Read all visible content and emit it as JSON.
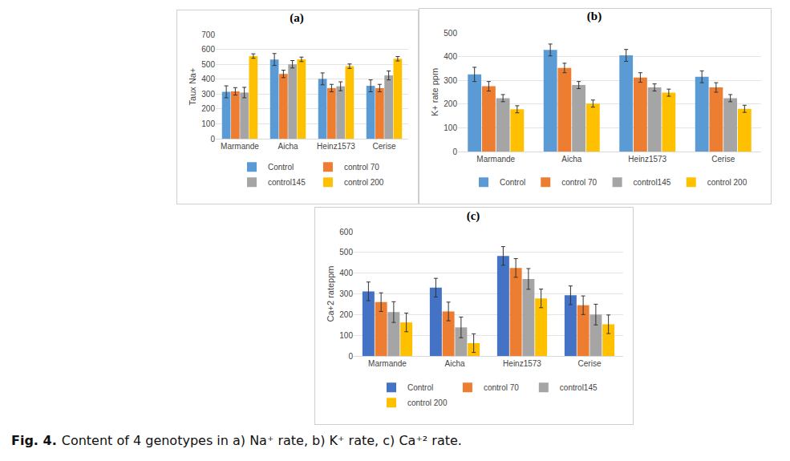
{
  "caption": {
    "label": "Fig. 4.",
    "text": "Content of 4 genotypes in a) Na⁺ rate, b) K⁺ rate, c) Ca⁺² rate."
  },
  "chart_data": [
    {
      "type": "bar",
      "title": "(a)",
      "y_label": "Taux Na+",
      "categories": [
        "Marmande",
        "Aicha",
        "Heinz1573",
        "Cerise"
      ],
      "series": [
        {
          "name": "Control",
          "color": "#5b9bd5",
          "values": [
            315,
            532,
            402,
            355
          ],
          "errors": [
            40,
            40,
            40,
            40
          ]
        },
        {
          "name": "control 70",
          "color": "#ed7d31",
          "values": [
            318,
            435,
            340,
            340
          ],
          "errors": [
            25,
            25,
            25,
            25
          ]
        },
        {
          "name": "control145",
          "color": "#a5a5a5",
          "values": [
            310,
            500,
            352,
            425
          ],
          "errors": [
            35,
            25,
            30,
            30
          ]
        },
        {
          "name": "control 200",
          "color": "#ffc000",
          "values": [
            555,
            533,
            487,
            537
          ],
          "errors": [
            15,
            15,
            15,
            15
          ]
        }
      ],
      "ylim": [
        0,
        700
      ],
      "yticks": [
        0,
        100,
        200,
        300,
        400,
        500,
        600,
        700
      ],
      "grid": true,
      "legend": "bottom"
    },
    {
      "type": "bar",
      "title": "(b)",
      "y_label": "K+ rate ppm",
      "categories": [
        "Marmande",
        "Aicha",
        "Heinz1573",
        "Cerise"
      ],
      "series": [
        {
          "name": "Control",
          "color": "#5b9bd5",
          "values": [
            325,
            428,
            405,
            315
          ],
          "errors": [
            30,
            25,
            25,
            25
          ]
        },
        {
          "name": "control 70",
          "color": "#ed7d31",
          "values": [
            275,
            352,
            312,
            270
          ],
          "errors": [
            20,
            20,
            20,
            20
          ]
        },
        {
          "name": "control145",
          "color": "#a5a5a5",
          "values": [
            225,
            280,
            270,
            225
          ],
          "errors": [
            15,
            15,
            15,
            15
          ]
        },
        {
          "name": "control 200",
          "color": "#ffc000",
          "values": [
            178,
            202,
            248,
            180
          ],
          "errors": [
            15,
            15,
            15,
            15
          ]
        }
      ],
      "ylim": [
        0,
        500
      ],
      "yticks": [
        0,
        100,
        200,
        300,
        400,
        500
      ],
      "grid": true,
      "legend": "bottom"
    },
    {
      "type": "bar",
      "title": "(c)",
      "y_label": "Ca+2 rateppm",
      "categories": [
        "Marmande",
        "Aicha",
        "Heinz1573",
        "Cerise"
      ],
      "series": [
        {
          "name": "Control",
          "color": "#4472c4",
          "values": [
            312,
            330,
            483,
            293
          ],
          "errors": [
            45,
            45,
            45,
            45
          ]
        },
        {
          "name": "control 70",
          "color": "#ed7d31",
          "values": [
            260,
            215,
            425,
            245
          ],
          "errors": [
            45,
            45,
            45,
            45
          ]
        },
        {
          "name": "control145",
          "color": "#a5a5a5",
          "values": [
            212,
            138,
            372,
            200
          ],
          "errors": [
            50,
            50,
            50,
            50
          ]
        },
        {
          "name": "control 200",
          "color": "#ffc000",
          "values": [
            162,
            62,
            278,
            153
          ],
          "errors": [
            45,
            45,
            45,
            45
          ]
        }
      ],
      "ylim": [
        0,
        600
      ],
      "yticks": [
        0,
        100,
        200,
        300,
        400,
        500,
        600
      ],
      "grid": true,
      "legend": "bottom"
    }
  ]
}
